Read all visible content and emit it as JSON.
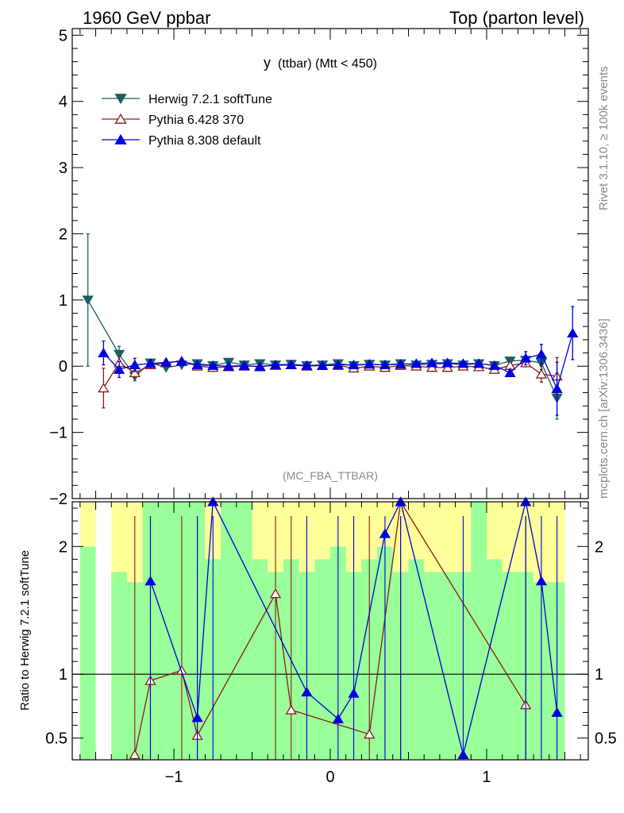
{
  "header": {
    "left_title": "1960 GeV ppbar",
    "right_title": "Top (parton level)"
  },
  "side_labels": {
    "rivet": "Rivet 3.1.10, ≥ 100k events",
    "mcplots": "mcplots.cern.ch [arXiv:1306.3436]"
  },
  "plot_title_main": "y",
  "plot_title_sub": "(ttbar) (Mtt < 450)",
  "analysis_tag": "(MC_FBA_TTBAR)",
  "ratio_ylabel": "Ratio to Herwig 7.2.1 softTune",
  "colors": {
    "herwig": "#1b5e64",
    "pythia6": "#8b1a1a",
    "pythia8": "#0000dd",
    "band_green": "#99ff99",
    "band_yellow": "#ffff99"
  },
  "chart_data": [
    {
      "type": "line",
      "panel": "main",
      "xlim": [
        -1.65,
        1.65
      ],
      "ylim": [
        -2,
        5.1
      ],
      "yticks": [
        "−2",
        "−1",
        "0",
        "1",
        "2",
        "3",
        "4",
        "5"
      ],
      "xticks": [
        "−1",
        "0",
        "1"
      ],
      "legend_position": "top-left",
      "series": [
        {
          "name": "Herwig 7.2.1 softTune",
          "marker": "triangle-down-filled",
          "color": "#1b5e64",
          "x": [
            -1.55,
            -1.35,
            -1.25,
            -1.15,
            -1.05,
            -0.95,
            -0.85,
            -0.75,
            -0.65,
            -0.55,
            -0.45,
            -0.35,
            -0.25,
            -0.15,
            -0.05,
            0.05,
            0.15,
            0.25,
            0.35,
            0.45,
            0.55,
            0.65,
            0.75,
            0.85,
            0.95,
            1.05,
            1.15,
            1.25,
            1.35,
            1.45
          ],
          "y": [
            1.0,
            0.18,
            -0.15,
            0.05,
            -0.02,
            0.02,
            0.04,
            0.01,
            0.06,
            0.02,
            0.04,
            0.02,
            0.03,
            0.01,
            0.02,
            0.04,
            0.01,
            0.03,
            0.02,
            0.04,
            0.02,
            0.03,
            0.04,
            0.02,
            0.04,
            0.01,
            0.08,
            0.09,
            0.05,
            -0.48
          ],
          "err": [
            1.0,
            0.12,
            0.07,
            0.04,
            0.03,
            0.02,
            0.02,
            0.02,
            0.02,
            0.02,
            0.02,
            0.02,
            0.02,
            0.02,
            0.02,
            0.02,
            0.02,
            0.02,
            0.02,
            0.02,
            0.02,
            0.02,
            0.02,
            0.02,
            0.02,
            0.03,
            0.03,
            0.05,
            0.1,
            0.32
          ]
        },
        {
          "name": "Pythia 6.428 370",
          "marker": "triangle-up-open",
          "color": "#8b1a1a",
          "x": [
            -1.45,
            -1.35,
            -1.25,
            -1.15,
            -1.05,
            -0.95,
            -0.85,
            -0.75,
            -0.65,
            -0.55,
            -0.45,
            -0.35,
            -0.25,
            -0.15,
            -0.05,
            0.05,
            0.15,
            0.25,
            0.35,
            0.45,
            0.55,
            0.65,
            0.75,
            0.85,
            0.95,
            1.05,
            1.15,
            1.25,
            1.35,
            1.45
          ],
          "y": [
            -0.33,
            0.05,
            -0.1,
            0.02,
            0.05,
            0.08,
            0.0,
            -0.02,
            -0.01,
            0.0,
            0.0,
            0.01,
            0.02,
            0.0,
            0.01,
            0.01,
            -0.03,
            0.0,
            -0.02,
            0.01,
            0.0,
            -0.02,
            -0.02,
            0.0,
            -0.01,
            -0.05,
            0.01,
            0.05,
            -0.12,
            -0.15
          ],
          "err": [
            0.3,
            0.1,
            0.06,
            0.04,
            0.03,
            0.03,
            0.02,
            0.02,
            0.02,
            0.02,
            0.02,
            0.02,
            0.02,
            0.02,
            0.02,
            0.02,
            0.02,
            0.02,
            0.02,
            0.02,
            0.02,
            0.02,
            0.02,
            0.02,
            0.02,
            0.03,
            0.04,
            0.06,
            0.12,
            0.28
          ]
        },
        {
          "name": "Pythia 8.308 default",
          "marker": "triangle-up-filled",
          "color": "#0000dd",
          "x": [
            -1.45,
            -1.35,
            -1.25,
            -1.15,
            -1.05,
            -0.95,
            -0.85,
            -0.75,
            -0.65,
            -0.55,
            -0.45,
            -0.35,
            -0.25,
            -0.15,
            -0.05,
            0.05,
            0.15,
            0.25,
            0.35,
            0.45,
            0.55,
            0.65,
            0.75,
            0.85,
            0.95,
            1.05,
            1.15,
            1.25,
            1.35,
            1.45,
            1.55
          ],
          "y": [
            0.2,
            -0.05,
            0.02,
            0.04,
            0.06,
            0.07,
            0.02,
            0.01,
            0.0,
            0.01,
            -0.01,
            0.02,
            0.02,
            0.01,
            0.01,
            0.02,
            0.02,
            0.03,
            0.02,
            0.03,
            0.04,
            0.05,
            0.05,
            0.04,
            0.04,
            0.01,
            -0.1,
            0.12,
            0.18,
            -0.34,
            0.5
          ],
          "err": [
            0.18,
            0.12,
            0.1,
            0.06,
            0.04,
            0.03,
            0.02,
            0.02,
            0.02,
            0.02,
            0.02,
            0.02,
            0.02,
            0.02,
            0.02,
            0.02,
            0.02,
            0.02,
            0.02,
            0.02,
            0.02,
            0.02,
            0.02,
            0.02,
            0.02,
            0.03,
            0.05,
            0.1,
            0.15,
            0.4,
            0.4
          ]
        }
      ]
    },
    {
      "type": "line",
      "panel": "ratio",
      "ylabel": "Ratio to Herwig 7.2.1 softTune",
      "xlim": [
        -1.65,
        1.65
      ],
      "ylim": [
        0.33,
        2.35
      ],
      "yticks": [
        "0.5",
        "1",
        "2"
      ],
      "xticks": [
        "−1",
        "0",
        "1"
      ],
      "reference_line": 1,
      "bands": {
        "x": [
          -1.55,
          -1.35,
          -1.25,
          -1.15,
          -1.05,
          -0.95,
          -0.85,
          -0.75,
          -0.65,
          -0.55,
          -0.45,
          -0.35,
          -0.25,
          -0.15,
          -0.05,
          0.05,
          0.15,
          0.25,
          0.35,
          0.45,
          0.55,
          0.65,
          0.75,
          0.85,
          0.95,
          1.05,
          1.15,
          1.25,
          1.35,
          1.45
        ],
        "green_low": [
          0.0,
          0.0,
          0.0,
          0.0,
          0.0,
          0.0,
          0.0,
          0.0,
          0.0,
          0.0,
          0.0,
          0.0,
          0.0,
          0.0,
          0.0,
          0.0,
          0.0,
          0.0,
          0.0,
          0.0,
          0.0,
          0.0,
          0.0,
          0.0,
          0.0,
          0.0,
          0.0,
          0.0,
          0.0,
          0.0
        ],
        "green_high": [
          2.0,
          1.8,
          1.72,
          2.35,
          2.35,
          2.35,
          2.35,
          1.9,
          2.35,
          2.35,
          1.9,
          1.8,
          1.9,
          1.8,
          1.9,
          2.0,
          1.8,
          1.9,
          2.0,
          1.8,
          1.9,
          1.8,
          1.8,
          1.8,
          2.35,
          1.9,
          1.8,
          1.8,
          1.72,
          1.72
        ],
        "yellow_high": [
          2.35,
          2.35,
          2.35,
          2.35,
          2.35,
          2.35,
          2.35,
          2.35,
          2.35,
          2.35,
          2.35,
          2.35,
          2.35,
          2.35,
          2.35,
          2.35,
          2.35,
          2.35,
          2.35,
          2.35,
          2.35,
          2.35,
          2.35,
          2.35,
          2.35,
          2.35,
          2.35,
          2.35,
          2.35,
          2.35
        ]
      },
      "series": [
        {
          "name": "Pythia 6.428 370",
          "color": "#8b1a1a",
          "x": [
            -1.25,
            -1.15,
            -0.95,
            -0.85,
            -0.35,
            -0.25,
            0.25,
            0.45,
            1.25
          ],
          "y": [
            0.37,
            0.95,
            1.03,
            0.52,
            1.63,
            0.72,
            0.53,
            2.35,
            0.76
          ]
        },
        {
          "name": "Pythia 8.308 default",
          "color": "#0000dd",
          "x": [
            -1.15,
            -0.85,
            -0.75,
            -0.15,
            0.05,
            0.15,
            0.35,
            0.45,
            0.85,
            1.25,
            1.35,
            1.45
          ],
          "y": [
            1.73,
            0.66,
            2.35,
            0.86,
            0.65,
            0.85,
            2.1,
            2.35,
            0.37,
            2.35,
            1.73,
            0.7
          ]
        }
      ]
    }
  ]
}
